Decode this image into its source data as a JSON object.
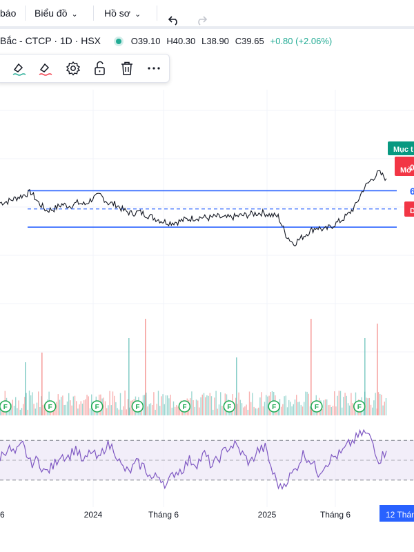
{
  "toolbar": {
    "left_fragment": "báo",
    "chart_menu": "Biểu đồ",
    "profile_menu": "Hồ sơ",
    "undo_icon": "undo-icon",
    "redo_icon": "redo-icon"
  },
  "legend": {
    "symbol": "Bắc - CTCP · 1D · HSX",
    "status_color": "#22ab94",
    "open": "O39.10",
    "high": "H40.30",
    "low": "L38.90",
    "close": "C39.65",
    "change": "+0.80 (+2.06%)"
  },
  "drawing_toolbox": {
    "icons": [
      "line-color-icon",
      "fill-color-icon",
      "settings-icon",
      "unlock-icon",
      "trash-icon",
      "more-icon"
    ]
  },
  "price_tags": {
    "target_label": "Mục t",
    "open_label": "Mở",
    "open_suffix": "0",
    "mid_fragment": "6",
    "d_label": "D",
    "target_color": "#089981",
    "open_color": "#f23645",
    "d_color": "#f23645",
    "mid_color": "#2962ff"
  },
  "colors": {
    "price_line": "#131722",
    "channel": "#2962ff",
    "rsi": "#7e57c2",
    "rsi_band": "#ede7f6",
    "vol_up": "#26a69a",
    "vol_down": "#ef5350",
    "dividend": "#22ab55",
    "axis_highlight": "#2962ff"
  },
  "chart_data": {
    "type": "line",
    "x_axis": {
      "tick_labels": [
        "6",
        "2024",
        "Tháng 6",
        "2025",
        "Tháng 6"
      ],
      "tick_positions": [
        0.0,
        0.225,
        0.395,
        0.645,
        0.81
      ],
      "highlight_label": "12 Thán"
    },
    "price": {
      "series_count": 1,
      "values": [
        0.6,
        0.62,
        0.66,
        0.7,
        0.74,
        0.6,
        0.5,
        0.52,
        0.58,
        0.56,
        0.6,
        0.58,
        0.66,
        0.7,
        0.6,
        0.58,
        0.5,
        0.46,
        0.48,
        0.44,
        0.4,
        0.36,
        0.34,
        0.35,
        0.38,
        0.4,
        0.41,
        0.4,
        0.42,
        0.4,
        0.41,
        0.43,
        0.44,
        0.46,
        0.47,
        0.44,
        0.42,
        0.18,
        0.06,
        0.14,
        0.22,
        0.28,
        0.24,
        0.3,
        0.36,
        0.44,
        0.56,
        0.78,
        0.9,
        1.0,
        0.92
      ],
      "upper_channel": 0.76,
      "middle_channel": 0.52,
      "lower_channel": 0.28
    },
    "volume": {
      "spike_positions": [
        0.06,
        0.1,
        0.31,
        0.35,
        0.57,
        0.75,
        0.88,
        0.91
      ],
      "spike_heights": [
        0.55,
        0.65,
        0.8,
        1.0,
        0.6,
        1.0,
        0.8,
        0.95
      ],
      "dividend_markers": [
        0.045,
        0.15,
        0.26,
        0.355,
        0.465,
        0.57,
        0.675,
        0.775,
        0.875
      ]
    },
    "rsi": {
      "values": [
        0.55,
        0.7,
        0.6,
        0.75,
        0.45,
        0.5,
        0.3,
        0.4,
        0.6,
        0.55,
        0.7,
        0.45,
        0.65,
        0.5,
        0.75,
        0.7,
        0.4,
        0.3,
        0.45,
        0.4,
        0.2,
        0.25,
        0.1,
        0.3,
        0.35,
        0.5,
        0.45,
        0.6,
        0.4,
        0.55,
        0.7,
        0.75,
        0.6,
        0.45,
        0.65,
        0.7,
        0.3,
        0.05,
        0.2,
        0.35,
        0.6,
        0.5,
        0.3,
        0.45,
        0.55,
        0.6,
        0.75,
        0.85,
        0.95,
        0.85,
        0.5,
        0.65
      ],
      "upper_band": 0.82,
      "lower_band": 0.18
    }
  }
}
